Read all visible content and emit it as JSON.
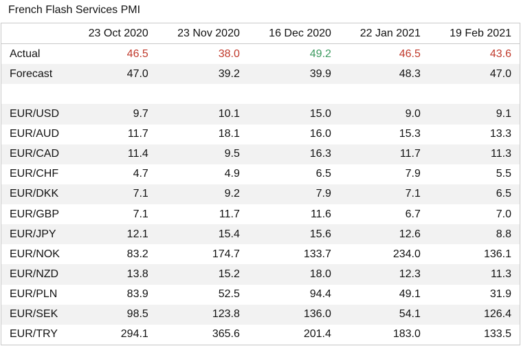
{
  "title": "French Flash Services PMI",
  "table": {
    "columns": [
      "23 Oct 2020",
      "23 Nov 2020",
      "16 Dec 2020",
      "22 Jan 2021",
      "19 Feb 2021"
    ],
    "summary_rows": [
      {
        "label": "Actual",
        "values": [
          "46.5",
          "38.0",
          "49.2",
          "46.5",
          "43.6"
        ],
        "colors": [
          "#c0392b",
          "#c0392b",
          "#3c9a5f",
          "#c0392b",
          "#c0392b"
        ]
      },
      {
        "label": "Forecast",
        "values": [
          "47.0",
          "39.2",
          "39.9",
          "48.3",
          "47.0"
        ]
      }
    ],
    "fx_rows": [
      {
        "label": "EUR/USD",
        "values": [
          "9.7",
          "10.1",
          "15.0",
          "9.0",
          "9.1"
        ]
      },
      {
        "label": "EUR/AUD",
        "values": [
          "11.7",
          "18.1",
          "16.0",
          "15.3",
          "13.3"
        ]
      },
      {
        "label": "EUR/CAD",
        "values": [
          "11.4",
          "9.5",
          "16.3",
          "11.7",
          "11.3"
        ]
      },
      {
        "label": "EUR/CHF",
        "values": [
          "4.7",
          "4.9",
          "6.5",
          "7.9",
          "5.5"
        ]
      },
      {
        "label": "EUR/DKK",
        "values": [
          "7.1",
          "9.2",
          "7.9",
          "7.1",
          "6.5"
        ]
      },
      {
        "label": "EUR/GBP",
        "values": [
          "7.1",
          "11.7",
          "11.6",
          "6.7",
          "7.0"
        ]
      },
      {
        "label": "EUR/JPY",
        "values": [
          "12.1",
          "15.4",
          "15.6",
          "12.6",
          "8.8"
        ]
      },
      {
        "label": "EUR/NOK",
        "values": [
          "83.2",
          "174.7",
          "133.7",
          "234.0",
          "136.1"
        ]
      },
      {
        "label": "EUR/NZD",
        "values": [
          "13.8",
          "15.2",
          "18.0",
          "12.3",
          "11.3"
        ]
      },
      {
        "label": "EUR/PLN",
        "values": [
          "83.9",
          "52.5",
          "94.4",
          "49.1",
          "31.9"
        ]
      },
      {
        "label": "EUR/SEK",
        "values": [
          "98.5",
          "123.8",
          "136.0",
          "54.1",
          "126.4"
        ]
      },
      {
        "label": "EUR/TRY",
        "values": [
          "294.1",
          "365.6",
          "201.4",
          "183.0",
          "133.5"
        ]
      }
    ]
  }
}
